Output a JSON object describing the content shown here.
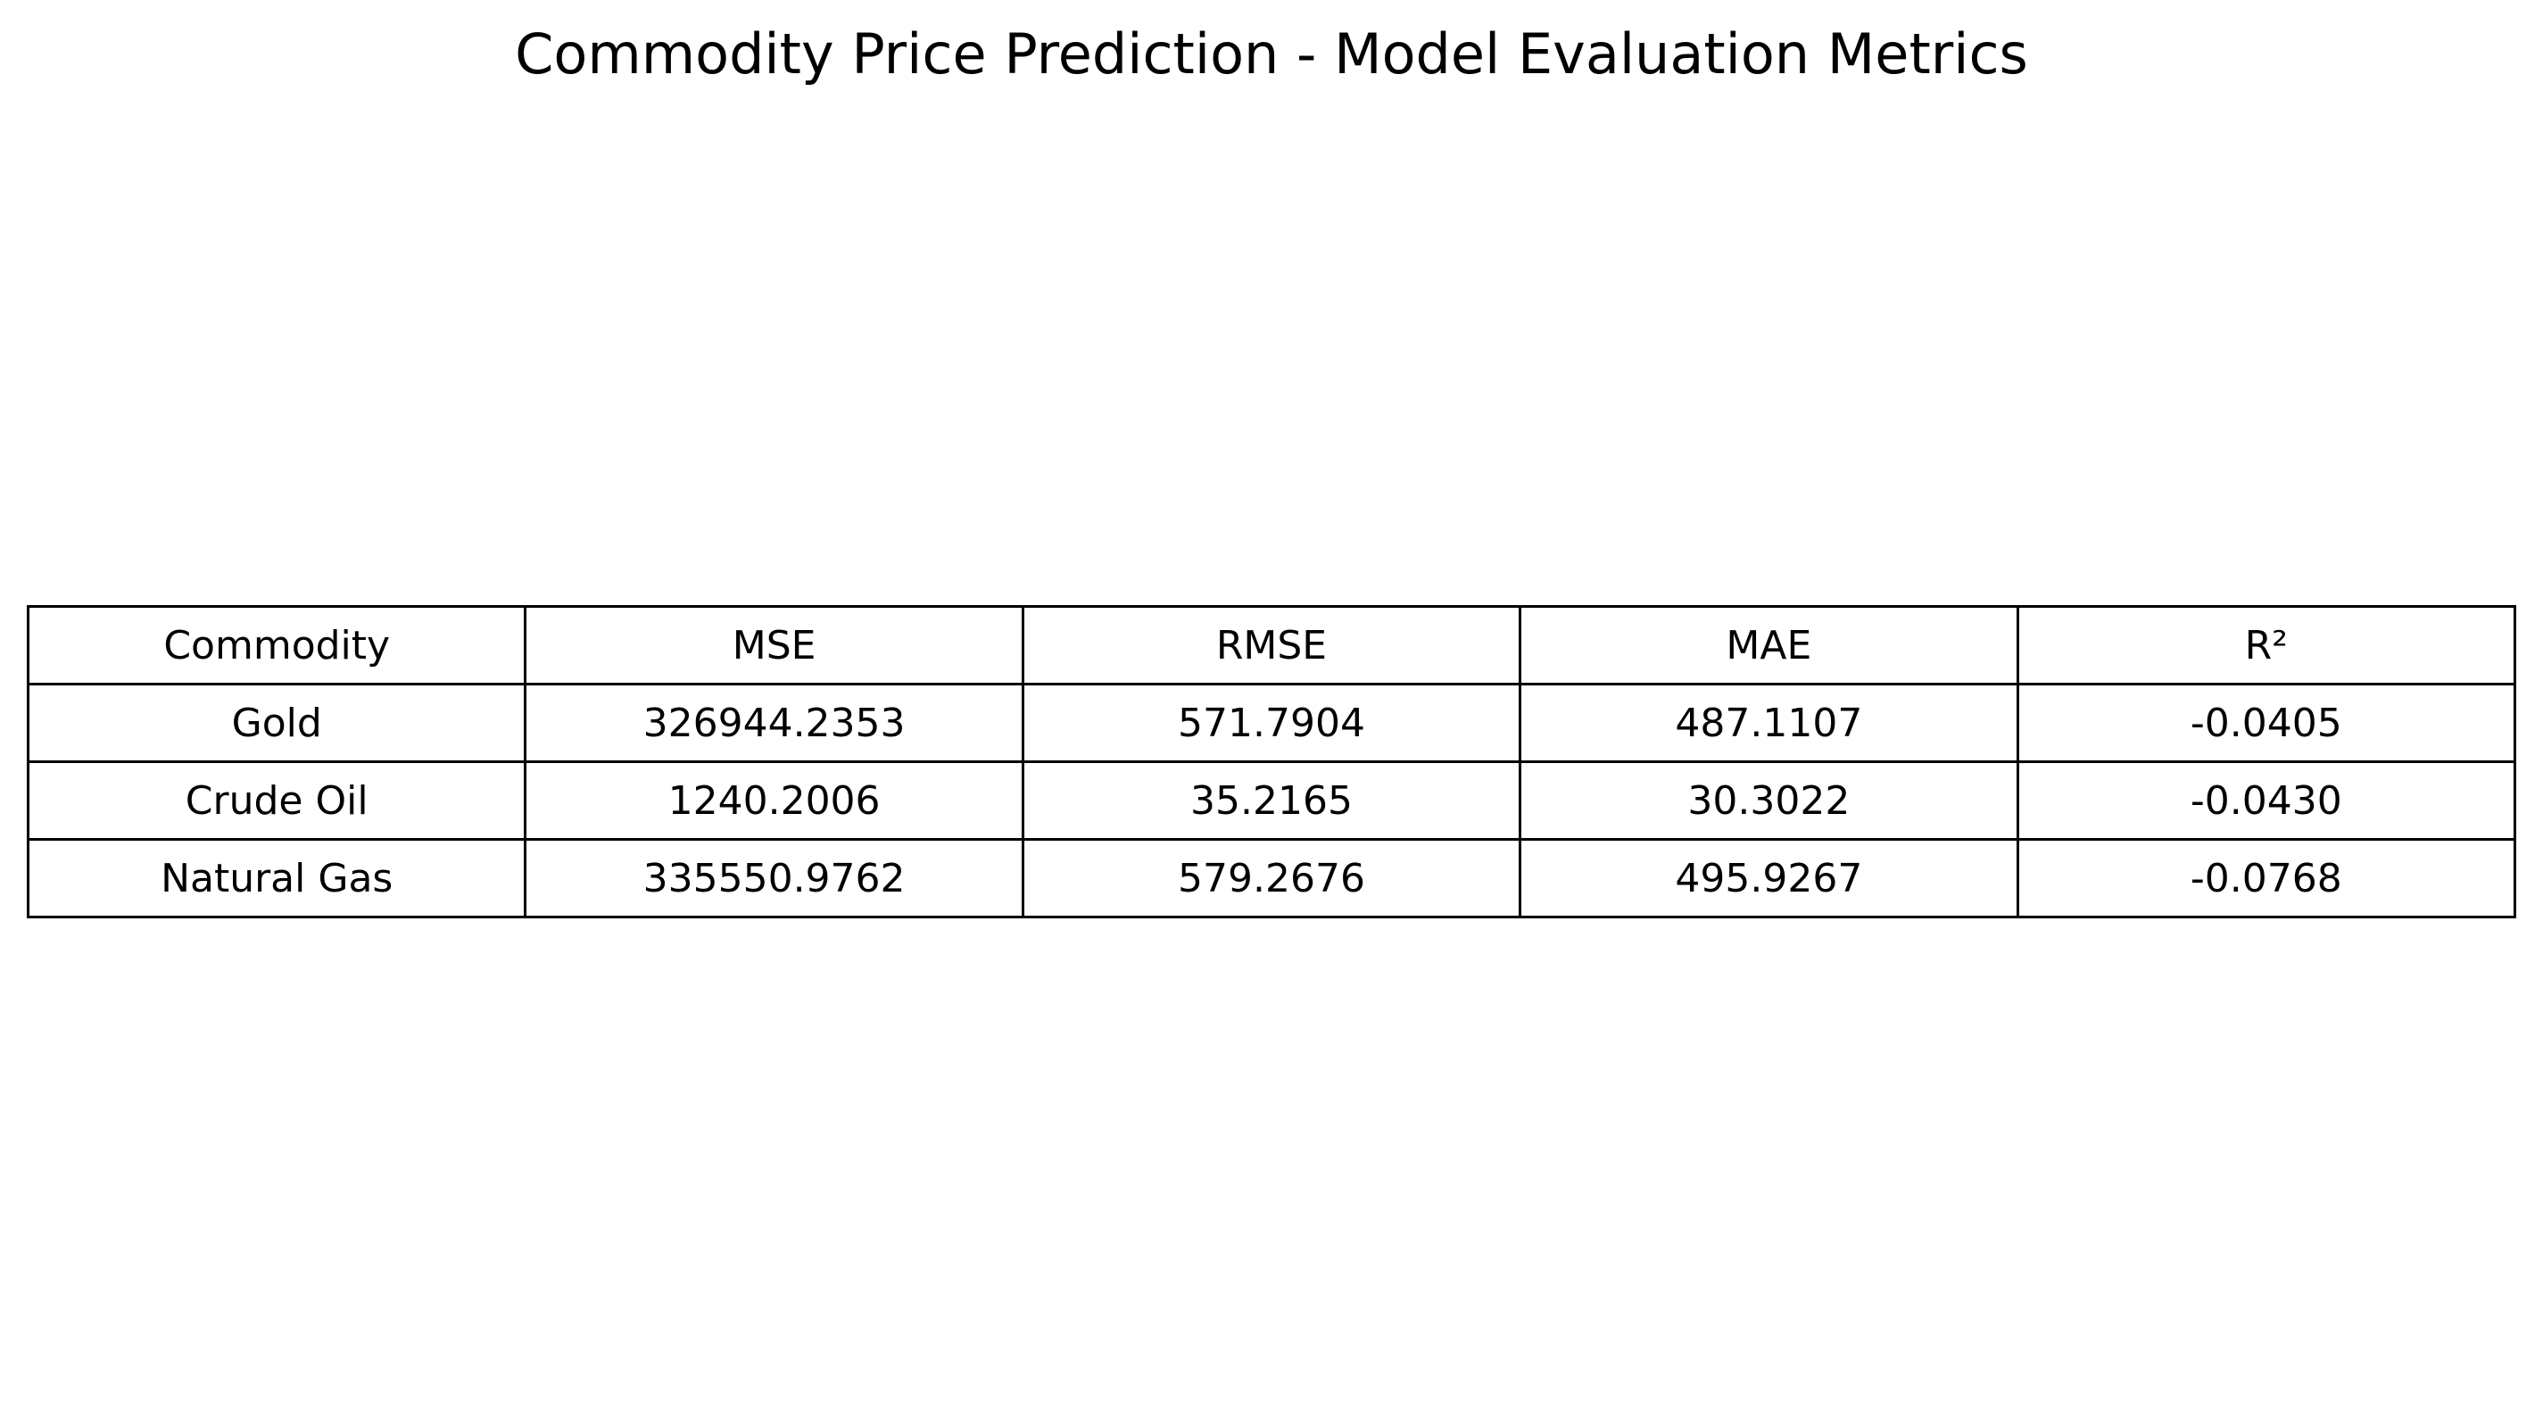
{
  "chart_data": {
    "type": "table",
    "title": "Commodity Price Prediction - Model Evaluation Metrics",
    "columns": [
      "Commodity",
      "MSE",
      "RMSE",
      "MAE",
      "R²"
    ],
    "rows": [
      [
        "Gold",
        "326944.2353",
        "571.7904",
        "487.1107",
        "-0.0405"
      ],
      [
        "Crude Oil",
        "1240.2006",
        "35.2165",
        "30.3022",
        "-0.0430"
      ],
      [
        "Natural Gas",
        "335550.9762",
        "579.2676",
        "495.9267",
        "-0.0768"
      ]
    ],
    "border_color": "#000000",
    "background_color": "#ffffff"
  }
}
